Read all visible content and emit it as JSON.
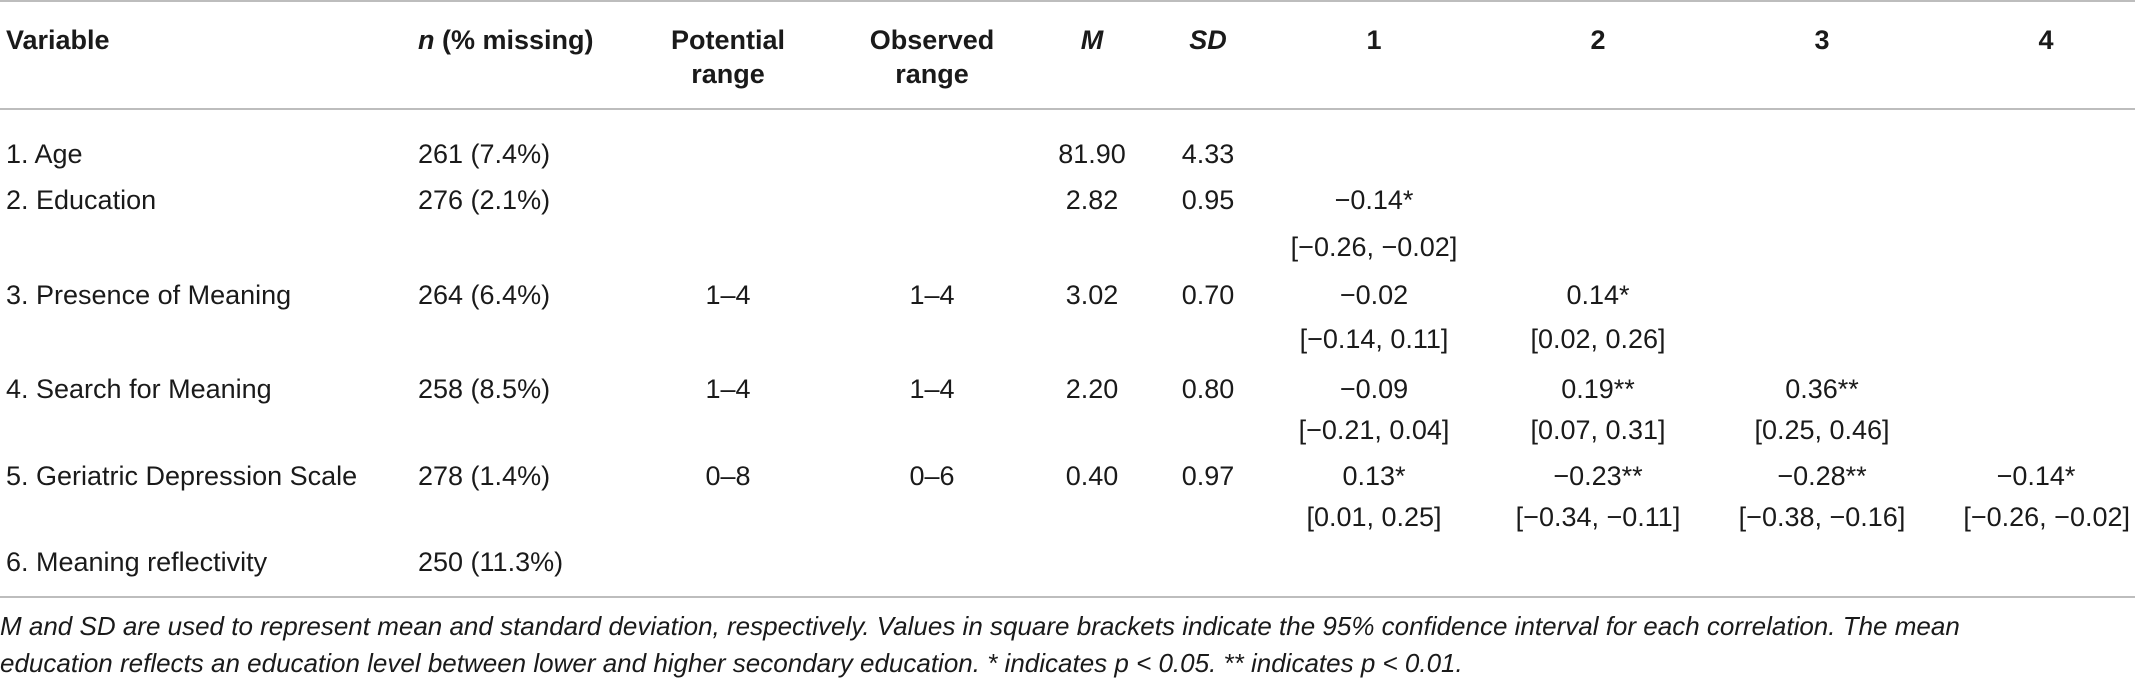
{
  "headers": {
    "variable": "Variable",
    "n_italic": "n",
    "n_rest": " (% missing)",
    "potential_1": "Potential",
    "potential_2": "range",
    "observed_1": "Observed",
    "observed_2": "range",
    "m": "M",
    "sd": "SD",
    "c1": "1",
    "c2": "2",
    "c3": "3",
    "c4": "4"
  },
  "rows": [
    {
      "variable": "1. Age",
      "n": "261 (7.4%)",
      "potential": "",
      "observed": "",
      "m": "81.90",
      "sd": "4.33"
    },
    {
      "variable": "2. Education",
      "n": "276 (2.1%)",
      "potential": "",
      "observed": "",
      "m": "2.82",
      "sd": "0.95",
      "c1": "−0.14*",
      "c1_ci": "[−0.26, −0.02]"
    },
    {
      "variable": "3. Presence of Meaning",
      "n": "264 (6.4%)",
      "potential": "1–4",
      "observed": "1–4",
      "m": "3.02",
      "sd": "0.70",
      "c1": "−0.02",
      "c1_ci": "[−0.14, 0.11]",
      "c2": "0.14*",
      "c2_ci": "[0.02, 0.26]"
    },
    {
      "variable": "4. Search for Meaning",
      "n": "258 (8.5%)",
      "potential": "1–4",
      "observed": "1–4",
      "m": "2.20",
      "sd": "0.80",
      "c1": "−0.09",
      "c1_ci": "[−0.21, 0.04]",
      "c2": "0.19**",
      "c2_ci": "[0.07, 0.31]",
      "c3": "0.36**",
      "c3_ci": "[0.25, 0.46]"
    },
    {
      "variable": "5. Geriatric Depression Scale",
      "n": "278 (1.4%)",
      "potential": "0–8",
      "observed": "0–6",
      "m": "0.40",
      "sd": "0.97",
      "c1": "0.13*",
      "c1_ci": "[0.01, 0.25]",
      "c2": "−0.23**",
      "c2_ci": "[−0.34, −0.11]",
      "c3": "−0.28**",
      "c3_ci": "[−0.38, −0.16]",
      "c4": "−0.14*",
      "c4_ci": "[−0.26, −0.02]"
    },
    {
      "variable": "6. Meaning reflectivity",
      "n": "250 (11.3%)",
      "potential": "",
      "observed": "",
      "m": "",
      "sd": ""
    }
  ],
  "note": {
    "line1": "M and SD are used to represent mean and standard deviation, respectively. Values in square brackets indicate the 95% confidence interval for each correlation. The mean",
    "line2": "education reflects an education level between lower and higher secondary education. * indicates p < 0.05. ** indicates p < 0.01."
  }
}
